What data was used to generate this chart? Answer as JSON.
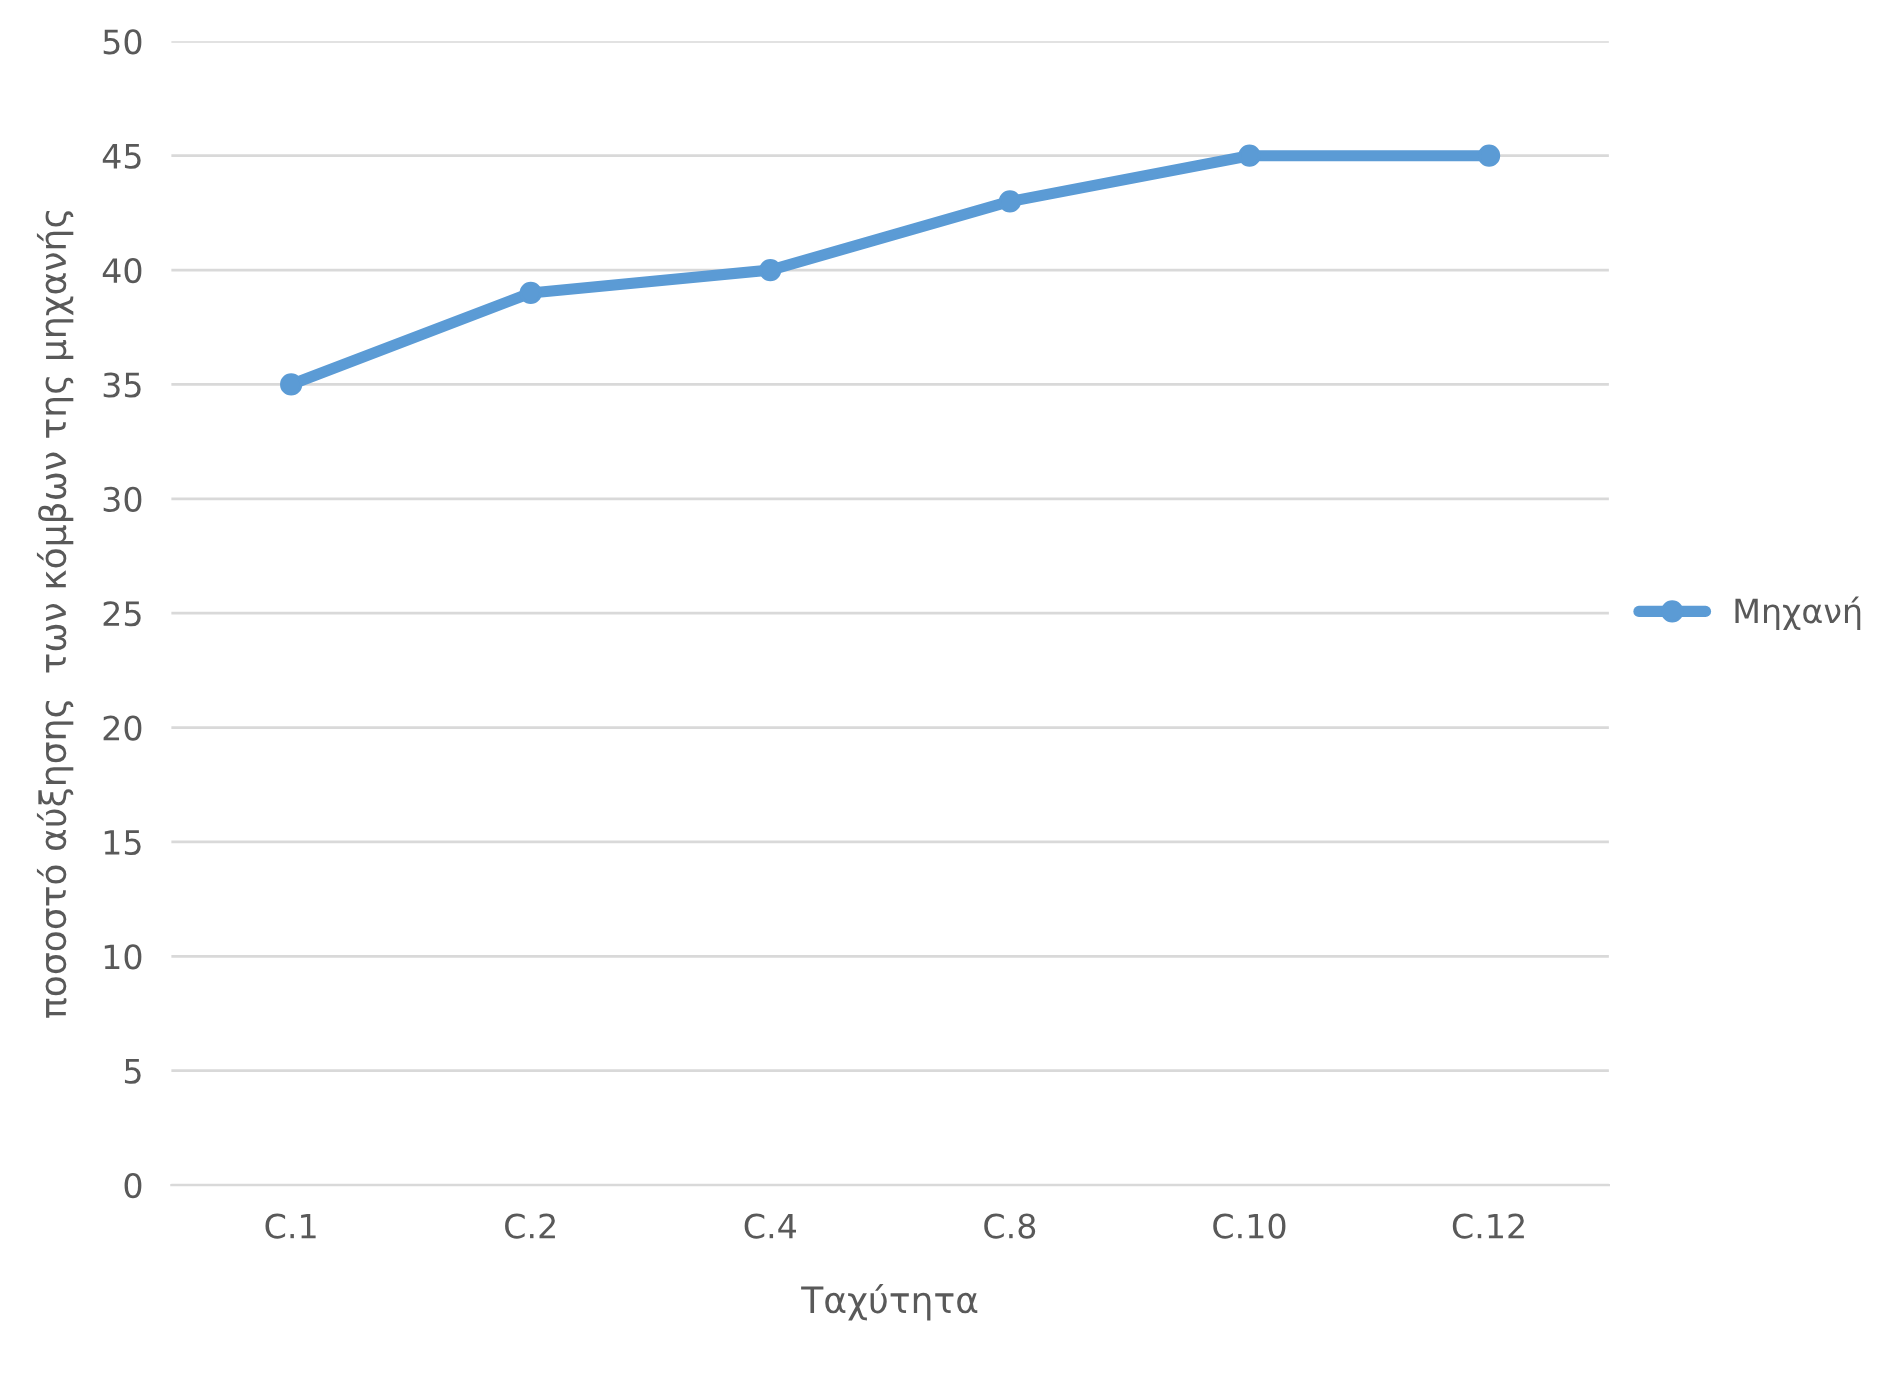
{
  "chart_data": {
    "type": "line",
    "xlabel": "Ταχύτητα",
    "ylabel": "ποσοστό αύξησης  των κόμβων της μηχανής",
    "categories": [
      "C.1",
      "C.2",
      "C.4",
      "C.8",
      "C.10",
      "C.12"
    ],
    "series": [
      {
        "name": "Μηχανή",
        "color": "#5b9bd5",
        "values": [
          35,
          39,
          40,
          43,
          45,
          45
        ]
      }
    ],
    "ylim": [
      0,
      50
    ],
    "yticks": [
      0,
      5,
      10,
      15,
      20,
      25,
      30,
      35,
      40,
      45,
      50
    ],
    "grid": "y",
    "legend": "right",
    "marker": "circle",
    "line_style": "solid"
  }
}
